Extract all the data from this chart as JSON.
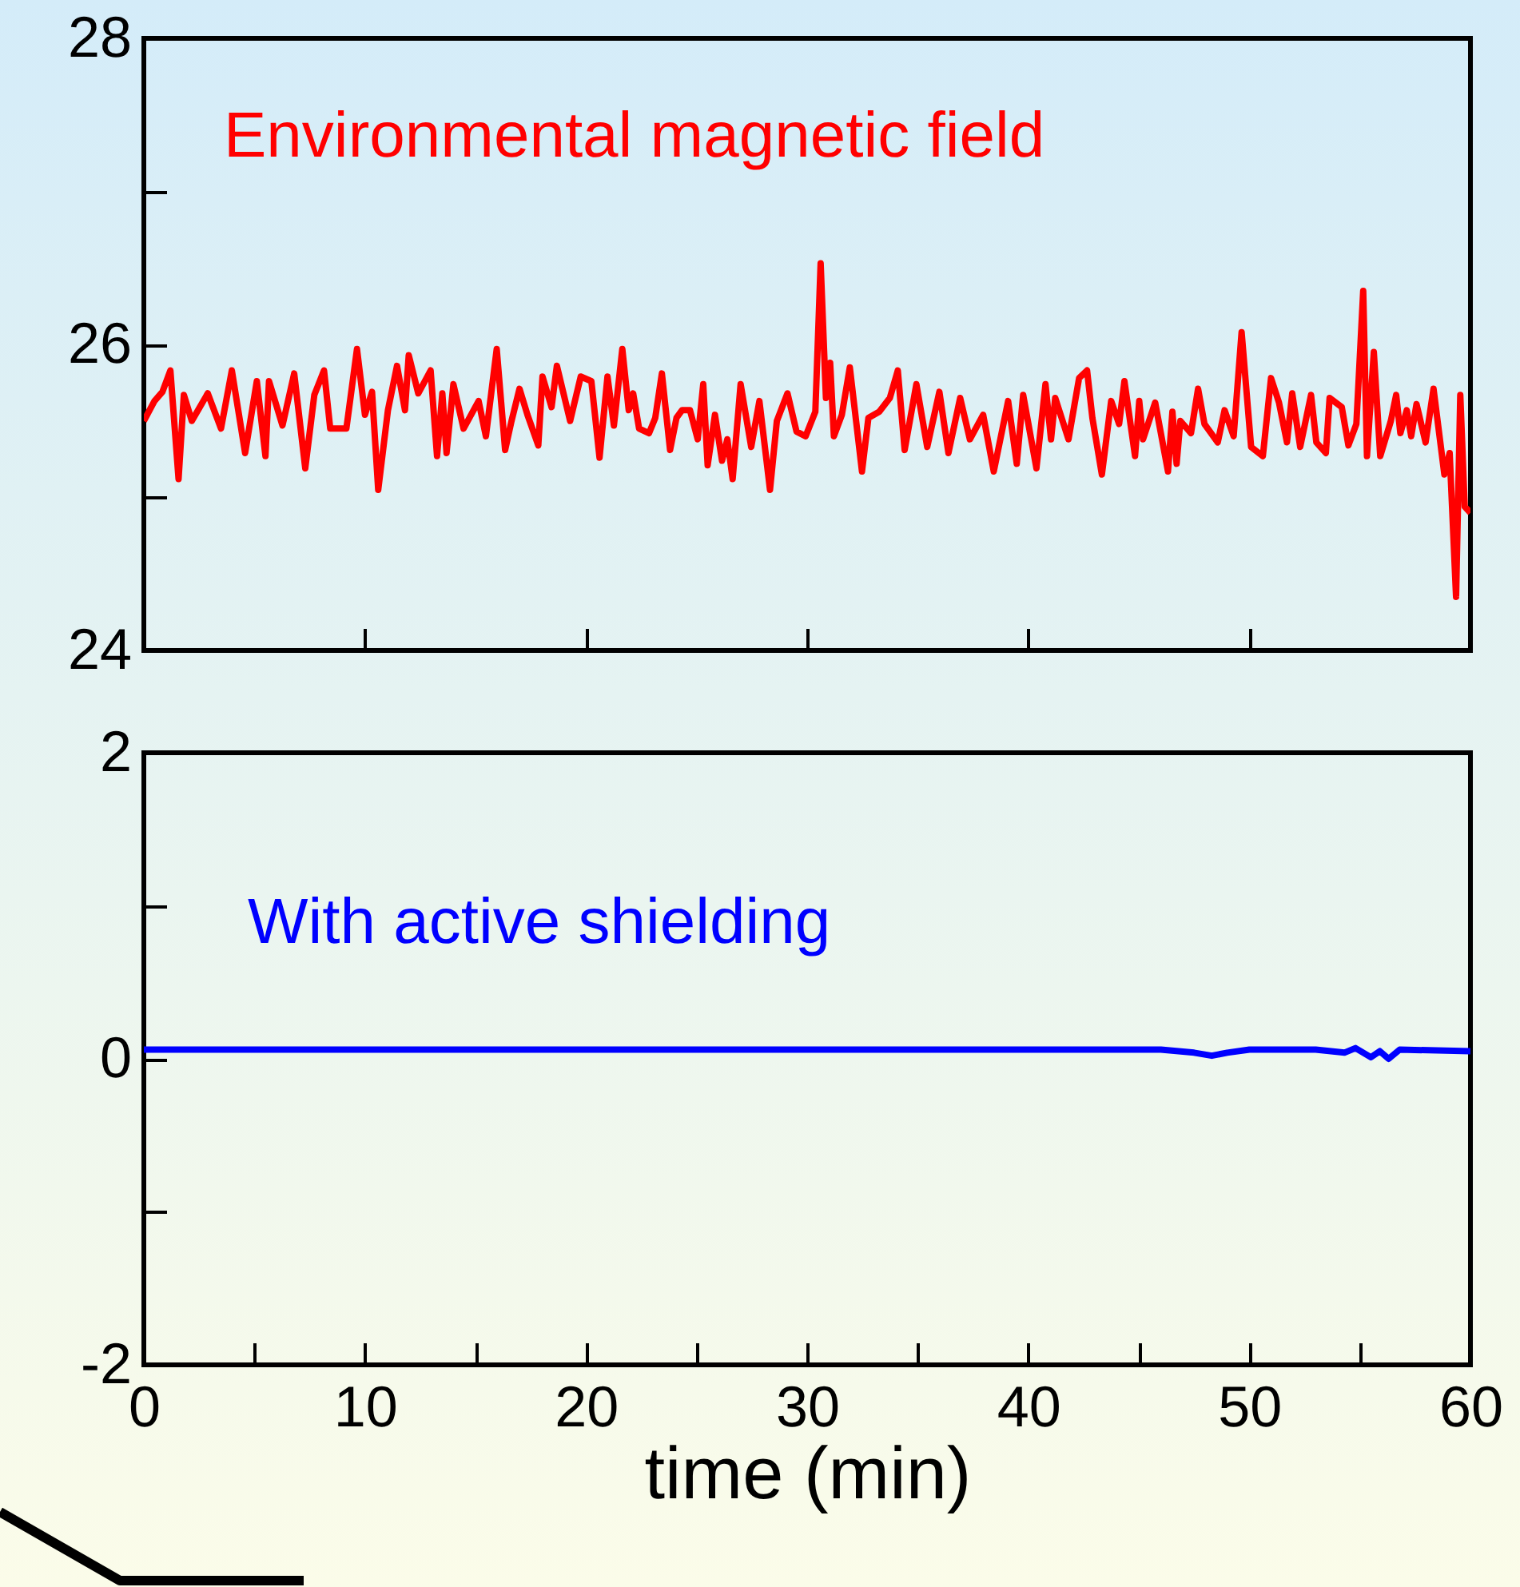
{
  "chart_data": [
    {
      "type": "line",
      "tick_labels": "y",
      "xlim": [
        0,
        60
      ],
      "xticks": [
        {
          "value": 0,
          "label": null
        },
        {
          "value": 10,
          "label": null
        },
        {
          "value": 20,
          "label": null
        },
        {
          "value": 30,
          "label": null
        },
        {
          "value": 40,
          "label": null
        },
        {
          "value": 50,
          "label": null
        },
        {
          "value": 60,
          "label": null
        }
      ],
      "ylim": [
        24,
        28
      ],
      "yticks": [
        24,
        {
          "value": 25,
          "label": null
        },
        26,
        {
          "value": 27,
          "label": null
        },
        28
      ],
      "x": [
        0,
        0.48,
        0.84,
        1.2,
        1.57,
        1.81,
        2.17,
        2.89,
        3.49,
        3.98,
        4.58,
        5.11,
        5.5,
        5.66,
        6.27,
        6.8,
        7.3,
        7.71,
        8.15,
        8.43,
        9.16,
        9.64,
        10.0,
        10.32,
        10.6,
        11.04,
        11.45,
        11.81,
        11.98,
        12.41,
        12.97,
        13.26,
        13.5,
        13.69,
        14.0,
        14.46,
        15.14,
        15.47,
        15.96,
        16.34,
        16.63,
        16.99,
        17.35,
        17.84,
        18.03,
        18.44,
        18.68,
        19.28,
        19.76,
        20.24,
        20.61,
        20.97,
        21.26,
        21.64,
        21.93,
        22.13,
        22.4,
        22.85,
        23.13,
        23.43,
        23.8,
        24.09,
        24.34,
        24.7,
        25.05,
        25.3,
        25.5,
        25.83,
        26.15,
        26.39,
        26.63,
        26.99,
        27.47,
        27.84,
        28.32,
        28.63,
        29.11,
        29.52,
        29.93,
        30.37,
        30.61,
        30.85,
        31.04,
        31.21,
        31.57,
        31.93,
        32.48,
        32.77,
        33.26,
        33.74,
        34.1,
        34.41,
        34.94,
        35.43,
        35.98,
        36.39,
        36.92,
        37.36,
        37.96,
        38.44,
        39.09,
        39.48,
        39.77,
        40.37,
        40.78,
        41.03,
        41.22,
        41.82,
        42.3,
        42.66,
        42.9,
        43.33,
        43.75,
        44.11,
        44.35,
        44.83,
        45.02,
        45.19,
        45.74,
        46.32,
        46.52,
        46.71,
        46.88,
        47.36,
        47.68,
        47.97,
        48.57,
        48.88,
        49.29,
        49.65,
        50.08,
        50.61,
        50.98,
        51.34,
        51.7,
        51.94,
        52.3,
        52.79,
        53.03,
        53.46,
        53.63,
        54.18,
        54.48,
        54.84,
        55.15,
        55.32,
        55.63,
        55.92,
        56.4,
        56.64,
        56.83,
        57.12,
        57.32,
        57.56,
        57.97,
        58.33,
        58.82,
        59.06,
        59.35,
        59.54,
        59.74,
        60
      ],
      "series": [
        {
          "name": "Environmental magnetic field",
          "color": "#ff0000",
          "values": [
            25.5,
            25.63,
            25.69,
            25.83,
            25.12,
            25.67,
            25.5,
            25.68,
            25.45,
            25.83,
            25.29,
            25.76,
            25.27,
            25.76,
            25.47,
            25.81,
            25.19,
            25.67,
            25.83,
            25.45,
            25.45,
            25.97,
            25.54,
            25.69,
            25.05,
            25.57,
            25.86,
            25.57,
            25.93,
            25.68,
            25.83,
            25.27,
            25.68,
            25.29,
            25.74,
            25.45,
            25.63,
            25.4,
            25.97,
            25.31,
            25.5,
            25.71,
            25.54,
            25.34,
            25.79,
            25.59,
            25.86,
            25.5,
            25.79,
            25.76,
            25.26,
            25.79,
            25.47,
            25.97,
            25.57,
            25.68,
            25.45,
            25.42,
            25.52,
            25.81,
            25.31,
            25.52,
            25.57,
            25.57,
            25.38,
            25.74,
            25.21,
            25.54,
            25.24,
            25.38,
            25.12,
            25.74,
            25.33,
            25.63,
            25.05,
            25.5,
            25.68,
            25.43,
            25.4,
            25.56,
            26.53,
            25.65,
            25.88,
            25.4,
            25.54,
            25.85,
            25.17,
            25.52,
            25.56,
            25.65,
            25.83,
            25.31,
            25.74,
            25.33,
            25.69,
            25.29,
            25.65,
            25.38,
            25.54,
            25.17,
            25.63,
            25.22,
            25.67,
            25.19,
            25.74,
            25.38,
            25.65,
            25.38,
            25.78,
            25.83,
            25.52,
            25.15,
            25.63,
            25.48,
            25.76,
            25.27,
            25.63,
            25.38,
            25.62,
            25.17,
            25.56,
            25.22,
            25.5,
            25.42,
            25.71,
            25.48,
            25.36,
            25.57,
            25.4,
            26.08,
            25.33,
            25.27,
            25.78,
            25.62,
            25.36,
            25.68,
            25.33,
            25.67,
            25.36,
            25.29,
            25.65,
            25.59,
            25.34,
            25.48,
            26.35,
            25.27,
            25.95,
            25.27,
            25.5,
            25.67,
            25.42,
            25.57,
            25.4,
            25.61,
            25.36,
            25.71,
            25.15,
            25.29,
            24.35,
            25.67,
            24.94,
            24.9
          ]
        }
      ]
    },
    {
      "type": "line",
      "xlabel": "time (min)",
      "xlim": [
        0,
        60
      ],
      "xticks": [
        0,
        {
          "value": 5,
          "label": null
        },
        10,
        {
          "value": 15,
          "label": null
        },
        20,
        {
          "value": 25,
          "label": null
        },
        30,
        {
          "value": 35,
          "label": null
        },
        40,
        {
          "value": 45,
          "label": null
        },
        50,
        {
          "value": 55,
          "label": null
        },
        60
      ],
      "ylim": [
        -2,
        2
      ],
      "yticks": [
        -2,
        {
          "value": -1,
          "label": null
        },
        0,
        {
          "value": 1,
          "label": null
        },
        2
      ],
      "x": [
        0,
        5,
        10,
        15,
        20,
        25,
        30,
        35,
        40,
        46,
        47.5,
        48.3,
        49,
        50,
        53,
        54.3,
        54.8,
        55.5,
        55.9,
        56.3,
        56.8,
        60
      ],
      "series": [
        {
          "name": "With active shielding",
          "color": "#0000ff",
          "values": [
            0.06,
            0.06,
            0.06,
            0.06,
            0.06,
            0.06,
            0.06,
            0.06,
            0.06,
            0.06,
            0.04,
            0.02,
            0.04,
            0.06,
            0.06,
            0.04,
            0.07,
            0.01,
            0.05,
            0.0,
            0.06,
            0.05
          ]
        }
      ]
    }
  ]
}
